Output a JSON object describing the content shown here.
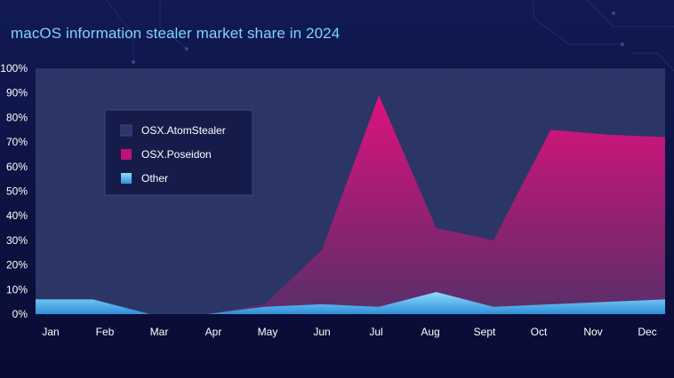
{
  "title": "macOS information stealer market share in 2024",
  "chart_data": {
    "type": "area",
    "title": "macOS information stealer market share in 2024",
    "categories": [
      "Jan",
      "Feb",
      "Mar",
      "Apr",
      "May",
      "Jun",
      "Jul",
      "Aug",
      "Sept",
      "Oct",
      "Nov",
      "Dec"
    ],
    "ylim": [
      0,
      100
    ],
    "yticks": [
      "0%",
      "10%",
      "20%",
      "30%",
      "40%",
      "50%",
      "60%",
      "70%",
      "80%",
      "90%",
      "100%"
    ],
    "legend_position": "upper-left",
    "series": [
      {
        "name": "OSX.AtomStealer",
        "color": "#2b3566",
        "values": [
          100,
          100,
          100,
          100,
          100,
          100,
          100,
          100,
          100,
          100,
          100,
          100
        ]
      },
      {
        "name": "OSX.Poseidon",
        "color": "#e0107f",
        "values": [
          6,
          6,
          0,
          0,
          4,
          26,
          89,
          35,
          30,
          75,
          73,
          72
        ]
      },
      {
        "name": "Other",
        "color": "#4fc3f7",
        "values": [
          6,
          6,
          0,
          0,
          3,
          4,
          3,
          9,
          3,
          4,
          5,
          6
        ]
      }
    ]
  }
}
